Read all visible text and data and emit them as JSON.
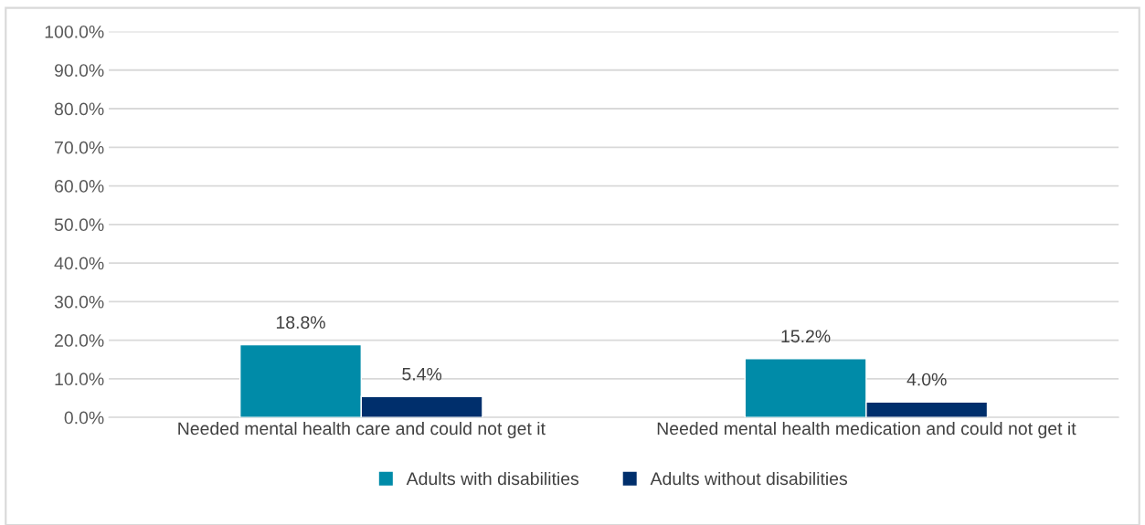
{
  "chart_data": {
    "type": "bar",
    "categories": [
      "Needed mental health care and could not get it",
      "Needed mental health medication and could not get it"
    ],
    "series": [
      {
        "name": "Adults with disabilities",
        "color": "#008ba8",
        "values": [
          18.8,
          15.2
        ],
        "value_labels": [
          "18.8%",
          "15.2%"
        ]
      },
      {
        "name": "Adults without disabilities",
        "color": "#002f6c",
        "values": [
          5.4,
          4.0
        ],
        "value_labels": [
          "5.4%",
          "4.0%"
        ]
      }
    ],
    "ylim": [
      0,
      100
    ],
    "yticks": [
      {
        "value": 0,
        "label": "0.0%"
      },
      {
        "value": 10,
        "label": "10.0%"
      },
      {
        "value": 20,
        "label": "20.0%"
      },
      {
        "value": 30,
        "label": "30.0%"
      },
      {
        "value": 40,
        "label": "40.0%"
      },
      {
        "value": 50,
        "label": "50.0%"
      },
      {
        "value": 60,
        "label": "60.0%"
      },
      {
        "value": 70,
        "label": "70.0%"
      },
      {
        "value": 80,
        "label": "80.0%"
      },
      {
        "value": 90,
        "label": "90.0%"
      },
      {
        "value": 100,
        "label": "100.0%"
      }
    ],
    "grid": "y",
    "legend": "bottom"
  }
}
